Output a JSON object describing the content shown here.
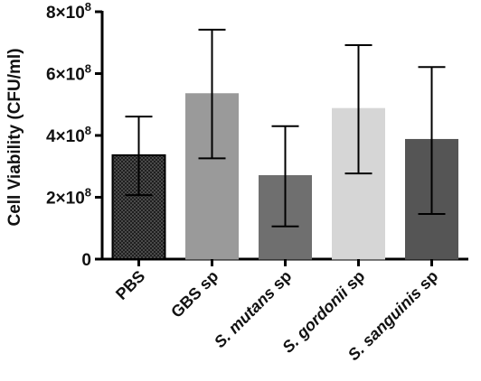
{
  "chart_data": {
    "type": "bar",
    "title": "",
    "xlabel": "",
    "ylabel": "Cell Viability (CFU/ml)",
    "ylim": [
      0,
      800000000
    ],
    "grid": false,
    "yticks": [
      {
        "value": 0,
        "label": "0"
      },
      {
        "value": 200000000,
        "label": "2×10",
        "exp": "8"
      },
      {
        "value": 400000000,
        "label": "4×10",
        "exp": "8"
      },
      {
        "value": 600000000,
        "label": "6×10",
        "exp": "8"
      },
      {
        "value": 800000000,
        "label": "8×10",
        "exp": "8"
      }
    ],
    "categories": [
      {
        "prefix": "",
        "italic": "",
        "suffix": "PBS"
      },
      {
        "prefix": "GBS sp",
        "italic": "",
        "suffix": ""
      },
      {
        "prefix": "",
        "italic": "S. mutans",
        "suffix": " sp"
      },
      {
        "prefix": "",
        "italic": "S. gordonii",
        "suffix": " sp"
      },
      {
        "prefix": "",
        "italic": "S. sanguinis",
        "suffix": " sp"
      }
    ],
    "values": [
      336000000,
      535000000,
      270000000,
      487000000,
      387000000
    ],
    "error_low": [
      207000000,
      326000000,
      106000000,
      277000000,
      146000000
    ],
    "error_high": [
      461000000,
      742000000,
      430000000,
      692000000,
      621000000
    ],
    "colors": [
      "#3a3a3a",
      "#9a9a9a",
      "#6f6f6f",
      "#d6d6d6",
      "#555555"
    ],
    "patterns": [
      "checker",
      "solid",
      "solid",
      "solid",
      "solid"
    ]
  }
}
